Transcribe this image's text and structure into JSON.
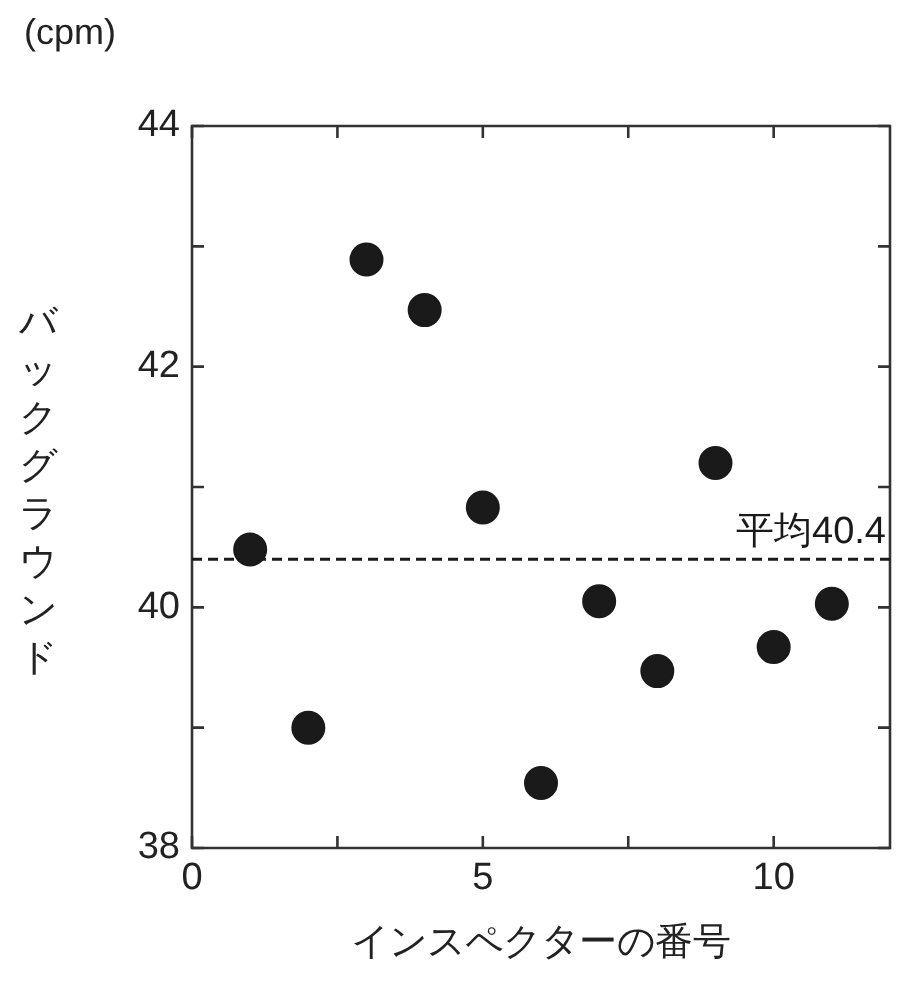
{
  "chart_data": {
    "type": "scatter",
    "ylabel": "バックグラウンド",
    "xlabel": "インスペクターの番号",
    "annotations": [
      "(cpm)"
    ],
    "x": [
      1,
      2,
      3,
      4,
      5,
      6,
      7,
      8,
      9,
      10,
      11
    ],
    "series": [
      {
        "color": "#1a1a1a",
        "values": [
          40.48,
          39.0,
          42.89,
          42.47,
          40.83,
          38.54,
          40.05,
          39.47,
          41.2,
          39.67,
          40.03
        ]
      }
    ],
    "xlim": [
      0,
      12
    ],
    "xticks": [
      0,
      {
        "value": 2.5,
        "label": null
      },
      5,
      {
        "value": 7.5,
        "label": null
      },
      10
    ],
    "ylim": [
      38,
      44
    ],
    "yticks": [
      38,
      {
        "value": 39,
        "label": null
      },
      40,
      {
        "value": 41,
        "label": null
      },
      42,
      {
        "value": 43,
        "label": null
      },
      44
    ],
    "ref_lines": [
      {
        "axis": "y",
        "value": 40.4,
        "label": "平均40.4",
        "color": "#1a1a1a",
        "line_style": "dashed"
      }
    ],
    "marker": "circle",
    "grid": false,
    "legend": false
  }
}
